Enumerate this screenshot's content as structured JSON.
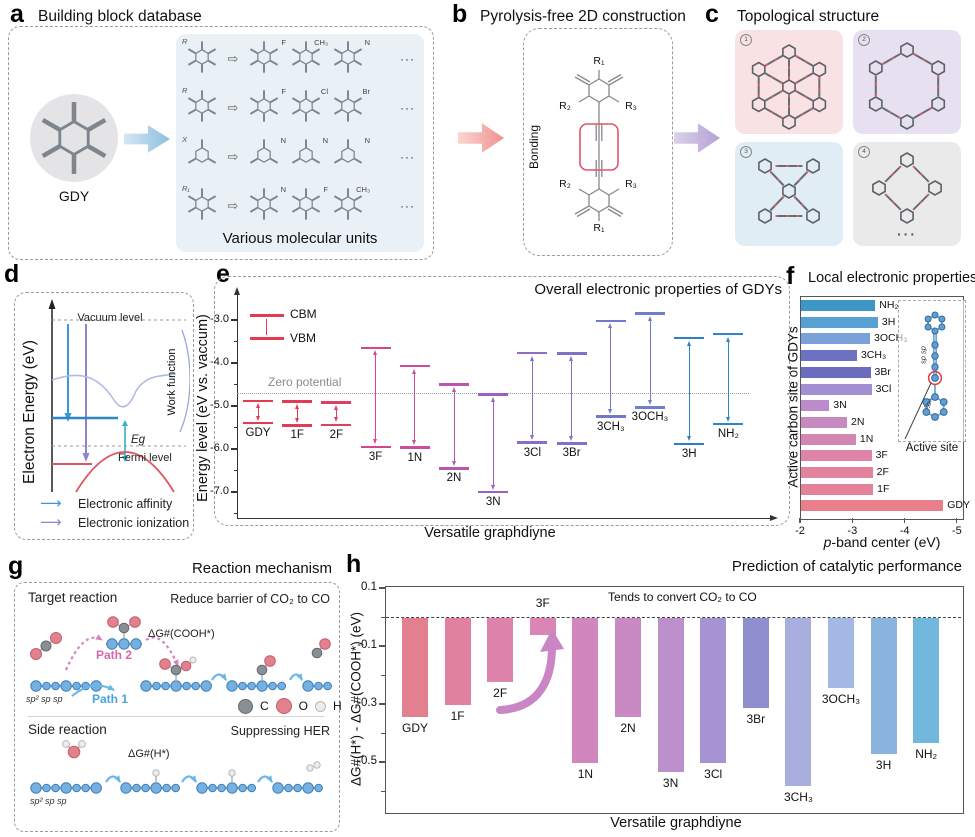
{
  "colors": {
    "atom_chain_blue": "#74b1e2",
    "atom_carbon": "#8a8f94",
    "atom_oxygen": "#e2808e",
    "atom_hydrogen": "#ececec",
    "tile1_bg": "#f9e2e4",
    "tile2_bg": "#e7e0f1",
    "tile3_bg": "#e1edf4",
    "tile4_bg": "#eaeaea",
    "units_bg": "#e9f0f6",
    "gdy_circle_bg": "#e4e4e7",
    "arrow_blue": "#8bbede",
    "arrow_pink": "#f0918f",
    "arrow_purple": "#b4a0d4",
    "link_red_dash": "#d9606a",
    "bonding_box_red": "#e0556a",
    "path1_blue": "#4aa3dc",
    "path2_magenta": "#d567ae",
    "cbm_vbm_red": "#e23b52",
    "diagram_cbm_blue": "#2e86c5",
    "diagram_vbm_red": "#e05565"
  },
  "panel_a": {
    "letter": "a",
    "title": "Building block database",
    "gdy_label": "GDY",
    "caption": "Various molecular units",
    "rows": [
      {
        "base": "R",
        "arrow": "⇨",
        "vars": [
          "F",
          "CH₃",
          "N"
        ],
        "more": "···"
      },
      {
        "base": "R",
        "arrow": "⇨",
        "vars": [
          "F",
          "Cl",
          "Br"
        ],
        "more": "···"
      },
      {
        "base": "X",
        "arrow": "⇨",
        "vars": [
          "N",
          "N",
          "N"
        ],
        "more": "···"
      },
      {
        "base": "R₁",
        "arrow": "⇨",
        "vars": [
          "N",
          "F",
          "CH₃"
        ],
        "more": "···"
      }
    ]
  },
  "panel_b": {
    "letter": "b",
    "title": "Pyrolysis-free 2D construction",
    "bonding_label": "Bonding",
    "r_labels": {
      "r1": "R₁",
      "r2": "R₂",
      "r3": "R₃"
    }
  },
  "panel_c": {
    "letter": "c",
    "title": "Topological  structure",
    "tile_numbers": [
      "1",
      "2",
      "3",
      "4"
    ],
    "ellipsis": "···"
  },
  "panel_d": {
    "letter": "d",
    "ylabel": "Electron Energy (eV)",
    "vacuum_label": "Vacuum level",
    "fermi_label": "Fermi level",
    "work_function_label": "Work function",
    "band_gap_label": "Eg",
    "legend": [
      {
        "label": "Electronic affinity",
        "color": "#3a9ad9"
      },
      {
        "label": "Electronic ionization",
        "color": "#8d85cc"
      }
    ]
  },
  "panel_e": {
    "letter": "e",
    "title": "Overall electronic properties of  GDYs"
  },
  "panel_f": {
    "letter": "f",
    "title": "Local electronic properties",
    "inset": {
      "active_site_label": "Active site",
      "sp_label": "sp sp",
      "sp2_label": "sp²"
    }
  },
  "panel_g": {
    "letter": "g",
    "title": "Reaction mechanism",
    "target_heading": "Target reaction",
    "target_note": "Reduce barrier of CO₂ to CO",
    "path1_label": "Path 1",
    "path2_label": "Path 2",
    "dg_cooh_label": "ΔG#(COOH*)",
    "side_heading": "Side reaction",
    "side_note": "Suppressing HER",
    "dg_h_label": "ΔG#(H*)",
    "sp_row": "sp²  sp  sp",
    "legend": [
      {
        "label": "C"
      },
      {
        "label": "O"
      },
      {
        "label": "H"
      }
    ]
  },
  "panel_h": {
    "letter": "h",
    "title": "Prediction of catalytic performance"
  },
  "chart_data": [
    {
      "id": "e",
      "type": "energy-levels",
      "title": "Overall electronic properties of  GDYs",
      "ylabel": "Energy  level (eV vs. vaccum)",
      "xlabel": "Versatile graphdiyne",
      "legend": [
        "CBM",
        "VBM"
      ],
      "zero_potential": -4.7,
      "zero_label": "Zero potential",
      "ylim": [
        -7.6,
        -2.4
      ],
      "yticks": [
        {
          "value": -3.0,
          "label": "-3.0"
        },
        {
          "value": -4.0,
          "label": "-4.0"
        },
        {
          "value": -5.0,
          "label": "-5.0"
        },
        {
          "value": -6.0,
          "label": "-6.0"
        },
        {
          "value": -7.0,
          "label": "-7.0"
        }
      ],
      "entries": [
        {
          "label": "GDY",
          "cbm": -4.88,
          "vbm": -5.4,
          "color": "#e23b52"
        },
        {
          "label": "1F",
          "cbm": -4.9,
          "vbm": -5.45,
          "color": "#e23b55"
        },
        {
          "label": "2F",
          "cbm": -4.92,
          "vbm": -5.44,
          "color": "#df3f63"
        },
        {
          "label": "3F",
          "cbm": -3.65,
          "vbm": -5.95,
          "color": "#d84490"
        },
        {
          "label": "1N",
          "cbm": -4.07,
          "vbm": -5.97,
          "color": "#cc4d9e"
        },
        {
          "label": "2N",
          "cbm": -4.5,
          "vbm": -6.45,
          "color": "#b956b2"
        },
        {
          "label": "3N",
          "cbm": -4.73,
          "vbm": -7.0,
          "color": "#a05ec0"
        },
        {
          "label": "3Cl",
          "cbm": -3.77,
          "vbm": -5.85,
          "color": "#8c6cc6"
        },
        {
          "label": "3Br",
          "cbm": -3.78,
          "vbm": -5.87,
          "color": "#7d73c9"
        },
        {
          "label": "3CH₃",
          "cbm": -3.02,
          "vbm": -5.25,
          "color": "#7478cb"
        },
        {
          "label": "3OCH₃",
          "cbm": -2.85,
          "vbm": -5.03,
          "color": "#6f7ecd"
        },
        {
          "label": "3H",
          "cbm": -3.42,
          "vbm": -5.88,
          "color": "#2f80c3"
        },
        {
          "label": "NH₂",
          "cbm": -3.33,
          "vbm": -5.42,
          "color": "#2c87c9"
        }
      ]
    },
    {
      "id": "f",
      "type": "bar",
      "orientation": "horizontal",
      "title": "Local electronic properties",
      "xlabel": "p-band center (eV)",
      "xlabel_italic_prefix": "p",
      "xlabel_rest": "-band center (eV)",
      "ylabel": "Active carbon site of GDYs",
      "xlim": [
        -2,
        -5.2
      ],
      "xticks": [
        {
          "value": -2,
          "label": "-2"
        },
        {
          "value": -3,
          "label": "-3"
        },
        {
          "value": -4,
          "label": "-4"
        },
        {
          "value": -5,
          "label": "-5"
        }
      ],
      "bars": [
        {
          "label": "NH₂",
          "value": -3.42,
          "color": "#3e96c6"
        },
        {
          "label": "3H",
          "value": -3.47,
          "color": "#57a0d2"
        },
        {
          "label": "3OCH₃",
          "value": -3.32,
          "color": "#7ba2d8"
        },
        {
          "label": "3CH₃",
          "value": -3.07,
          "color": "#6b72c1"
        },
        {
          "label": "3Br",
          "value": -3.33,
          "color": "#6a6dbd"
        },
        {
          "label": "3Cl",
          "value": -3.35,
          "color": "#a18fd2"
        },
        {
          "label": "3N",
          "value": -2.54,
          "color": "#bb8cc9"
        },
        {
          "label": "2N",
          "value": -2.88,
          "color": "#c689c0"
        },
        {
          "label": "1N",
          "value": -3.05,
          "color": "#d287b2"
        },
        {
          "label": "3F",
          "value": -3.35,
          "color": "#de84a8"
        },
        {
          "label": "2F",
          "value": -3.37,
          "color": "#e2839e"
        },
        {
          "label": "1F",
          "value": -3.38,
          "color": "#e38298"
        },
        {
          "label": "GDY",
          "value": -4.72,
          "color": "#e87f8b"
        }
      ]
    },
    {
      "id": "h",
      "type": "bar",
      "orientation": "vertical",
      "title": "Prediction of catalytic performance",
      "ylabel": "ΔG#(H*) - ΔG#(COOH*) (eV)",
      "xlabel": "Versatile graphdiyne",
      "annotation": "Tends to convert CO₂ to CO",
      "ylim": [
        -0.67,
        0.1
      ],
      "yticks": [
        {
          "value": 0.1,
          "label": "0.1"
        },
        {
          "value": -0.1,
          "label": "-0.1"
        },
        {
          "value": -0.3,
          "label": "-0.3"
        },
        {
          "value": -0.5,
          "label": "-0.5"
        }
      ],
      "yticks_minor": [
        0,
        -0.2,
        -0.4,
        -0.6
      ],
      "bars": [
        {
          "label": "GDY",
          "value": -0.34,
          "color": "#e2808f"
        },
        {
          "label": "1F",
          "value": -0.3,
          "color": "#e081a0"
        },
        {
          "label": "2F",
          "value": -0.22,
          "color": "#de83ac"
        },
        {
          "label": "3F",
          "value": -0.06,
          "color": "#da85b6",
          "label_above": true
        },
        {
          "label": "1N",
          "value": -0.5,
          "color": "#d187bd"
        },
        {
          "label": "2N",
          "value": -0.34,
          "color": "#c98ac4"
        },
        {
          "label": "3N",
          "value": -0.53,
          "color": "#bb90cb"
        },
        {
          "label": "3Cl",
          "value": -0.5,
          "color": "#a694d2"
        },
        {
          "label": "3Br",
          "value": -0.31,
          "color": "#8f8fcd"
        },
        {
          "label": "3CH₃",
          "value": -0.58,
          "color": "#a8aede"
        },
        {
          "label": "3OCH₃",
          "value": -0.24,
          "color": "#a3b8e2"
        },
        {
          "label": "3H",
          "value": -0.47,
          "color": "#8ab4dd"
        },
        {
          "label": "NH₂",
          "value": -0.43,
          "color": "#72b7dc"
        }
      ]
    }
  ]
}
